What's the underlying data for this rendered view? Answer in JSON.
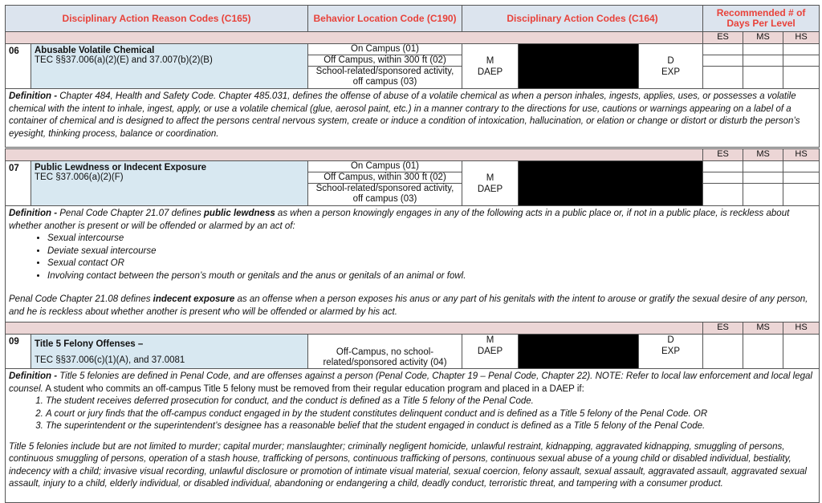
{
  "header": {
    "reason": "Disciplinary Action Reason Codes (C165)",
    "location": "Behavior Location Code (C190)",
    "actions": "Disciplinary Action Codes (C164)",
    "days": "Recommended # of Days Per Level"
  },
  "levels": [
    "ES",
    "MS",
    "HS"
  ],
  "locations": {
    "on": "On Campus (01)",
    "off": "Off Campus, within 300 ft (02)",
    "school": "School-related/sponsored activity, off campus (03)",
    "offno": "Off-Campus, no school-related/sponsored activity (04)"
  },
  "actions": {
    "m": "M",
    "daep": "DAEP",
    "d": "D",
    "exp": "EXP"
  },
  "def_label": "Definition - ",
  "rows": [
    {
      "code": "06",
      "title": "Abusable Volatile Chemical",
      "tec": "TEC §§37.006(a)(2)(E) and 37.007(b)(2)(B)",
      "definition": "Chapter 484, Health and Safety Code. Chapter 485.031, defines the offense of abuse of a volatile chemical as when a person inhales, ingests, applies, uses, or possesses a volatile chemical with the intent to inhale, ingest, apply, or use a volatile chemical (glue, aerosol paint, etc.) in a manner contrary to the directions for use, cautions or warnings appearing on a label of a container of chemical and is designed to affect the persons central nervous system, create or induce a condition of intoxication, hallucination, or elation or change or distort or disturb the person’s eyesight, thinking process, balance or coordination."
    },
    {
      "code": "07",
      "title": "Public Lewdness or Indecent Exposure",
      "tec": "TEC §37.006(a)(2)(F)",
      "def_a": "Penal Code Chapter 21.07 defines ",
      "def_b": "public lewdness",
      "def_c": " as when a person knowingly engages in any of the following acts in a public place or, if not in a public place, is reckless about whether another is present or will be offended or alarmed by an act of:",
      "bullets": [
        "Sexual intercourse",
        "Deviate sexual intercourse",
        "Sexual contact OR",
        "Involving contact between the person’s mouth or genitals and the anus or genitals of an animal or fowl."
      ],
      "def_d": "Penal Code Chapter 21.08 defines ",
      "def_e": "indecent exposure",
      "def_f": " as an offense when a person exposes his anus or any part of his genitals with the intent to arouse or gratify the sexual desire of any person, and he is reckless about whether another is present who will be offended or alarmed by his act."
    },
    {
      "code": "09",
      "title": "Title 5 Felony Offenses –",
      "tec": "TEC §§37.006(c)(1)(A), and 37.0081",
      "def_a": "Title 5 felonies are defined in Penal Code, and are offenses against a person (Penal Code, Chapter 19 – Penal Code, Chapter 22). NOTE: Refer to local law enforcement and local legal counsel.",
      "def_b": " A student who commits an off-campus Title 5 felony must be removed from their regular education program and placed in a DAEP if:",
      "items": [
        "The student receives deferred prosecution for conduct, and the conduct is defined as a Title 5 felony of the Penal Code.",
        "A court or jury finds that the off-campus conduct engaged in by the student constitutes delinquent conduct and is defined as a Title 5 felony of the Penal Code. OR",
        "The superintendent or the superintendent’s designee has a reasonable belief that the student engaged in conduct is defined as a Title 5 felony of the Penal Code."
      ],
      "def_c": "Title 5 felonies include but are not limited to murder; capital murder; manslaughter; criminally negligent homicide, unlawful restraint, kidnapping, aggravated kidnapping, smuggling of persons, continuous smuggling of persons, operation of a stash house, trafficking of persons, continuous trafficking of persons, continuous sexual abuse of a young child or disabled individual, bestiality, indecency with a child; invasive visual recording, unlawful disclosure or promotion of intimate visual material, sexual coercion, felony assault, sexual assault, aggravated assault, aggravated sexual assault, injury to a child, elderly individual, or disabled individual, abandoning or endangering a child, deadly conduct, terroristic threat, and tampering with a consumer product."
    }
  ]
}
